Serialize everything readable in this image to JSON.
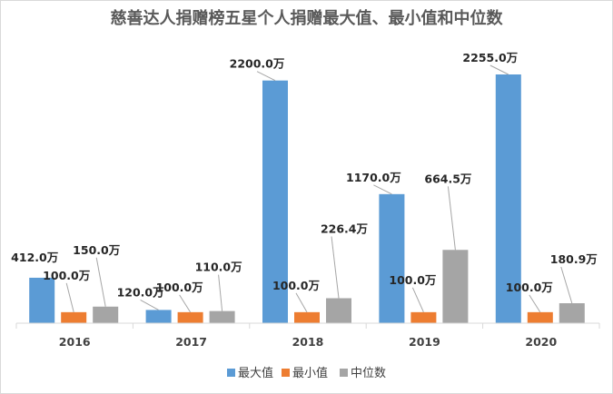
{
  "chart_data": {
    "type": "bar",
    "title": "慈善达人捐赠榜五星个人捐赠最大值、最小值和中位数",
    "categories": [
      "2016",
      "2017",
      "2018",
      "2019",
      "2020"
    ],
    "series": [
      {
        "name": "最大值",
        "color": "#5b9bd5",
        "values": [
          412.0,
          120.0,
          2200.0,
          1170.0,
          2255.0
        ],
        "labels": [
          "412.0万",
          "120.0万",
          "2200.0万",
          "1170.0万",
          "2255.0万"
        ]
      },
      {
        "name": "最小值",
        "color": "#ed7d31",
        "values": [
          100.0,
          100.0,
          100.0,
          100.0,
          100.0
        ],
        "labels": [
          "100.0万",
          "100.0万",
          "100.0万",
          "100.0万",
          "100.0万"
        ]
      },
      {
        "name": "中位数",
        "color": "#a5a5a5",
        "values": [
          150.0,
          110.0,
          226.4,
          664.5,
          180.9
        ],
        "labels": [
          "150.0万",
          "110.0万",
          "226.4万",
          "664.5万",
          "180.9万"
        ]
      }
    ],
    "unit": "万",
    "legend_position": "bottom",
    "grid": false
  }
}
